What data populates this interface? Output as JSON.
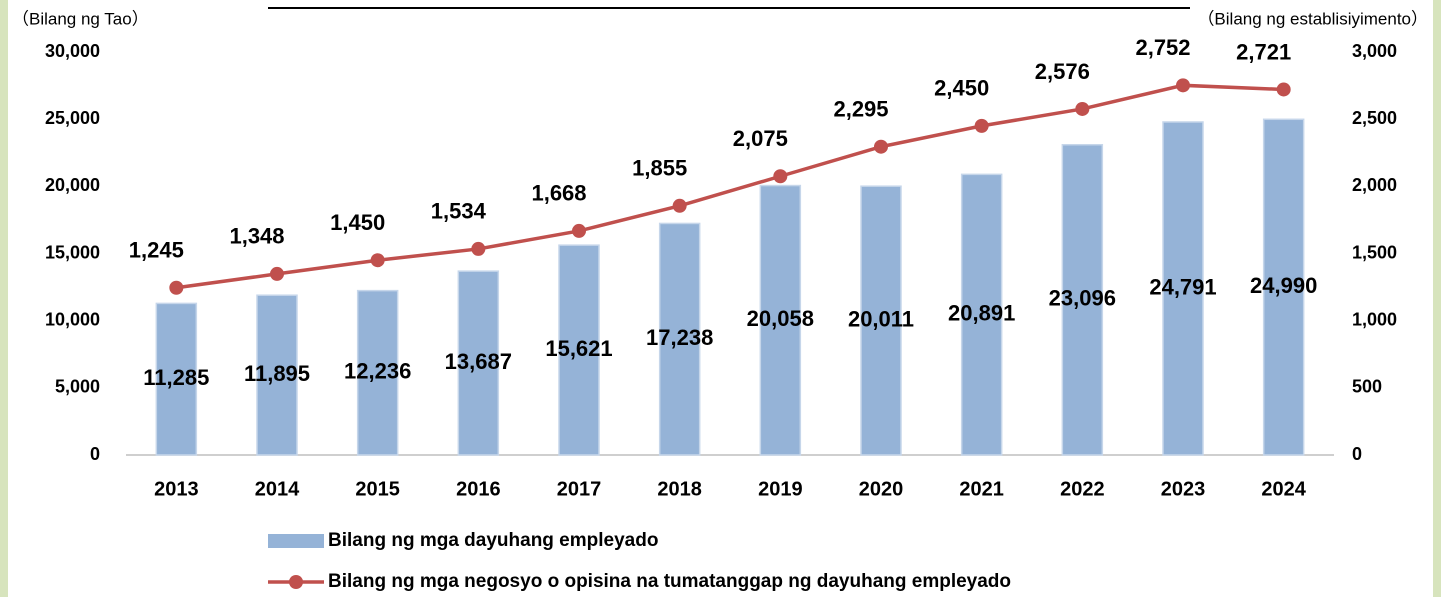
{
  "chart_data": {
    "type": "bar_line",
    "y_axis_label": "（Bilang ng Tao）",
    "y2_axis_label": "（Bilang ng establisiyimento）",
    "categories": [
      "2013",
      "2014",
      "2015",
      "2016",
      "2017",
      "2018",
      "2019",
      "2020",
      "2021",
      "2022",
      "2023",
      "2024"
    ],
    "series": [
      {
        "name": "Bilang ng mga dayuhang empleyado",
        "type": "bar",
        "color": "#95b3d7",
        "axis": "y",
        "values": [
          11285,
          11895,
          12236,
          13687,
          15621,
          17238,
          20058,
          20011,
          20891,
          23096,
          24791,
          24990
        ],
        "value_labels": [
          "11,285",
          "11,895",
          "12,236",
          "13,687",
          "15,621",
          "17,238",
          "20,058",
          "20,011",
          "20,891",
          "23,096",
          "24,791",
          "24,990"
        ]
      },
      {
        "name": "Bilang ng mga negosyo o opisina na tumatanggap ng dayuhang empleyado",
        "type": "line",
        "color": "#c0504d",
        "axis": "y2",
        "values": [
          1245,
          1348,
          1450,
          1534,
          1668,
          1855,
          2075,
          2295,
          2450,
          2576,
          2752,
          2721
        ],
        "value_labels": [
          "1,245",
          "1,348",
          "1,450",
          "1,534",
          "1,668",
          "1,855",
          "2,075",
          "2,295",
          "2,450",
          "2,576",
          "2,752",
          "2,721"
        ]
      }
    ],
    "ylim": [
      0,
      30000
    ],
    "yticks": [
      0,
      {
        "value": 5000,
        "label": "5,000"
      },
      {
        "value": 10000,
        "label": "10,000"
      },
      {
        "value": 15000,
        "label": "15,000"
      },
      {
        "value": 20000,
        "label": "20,000"
      },
      {
        "value": 25000,
        "label": "25,000"
      },
      {
        "value": 30000,
        "label": "30,000"
      }
    ],
    "y2lim": [
      0,
      3000
    ],
    "y2ticks": [
      0,
      500,
      {
        "value": 1000,
        "label": "1,000"
      },
      {
        "value": 1500,
        "label": "1,500"
      },
      {
        "value": 2000,
        "label": "2,000"
      },
      {
        "value": 2500,
        "label": "2,500"
      },
      {
        "value": 3000,
        "label": "3,000"
      }
    ],
    "grid": false,
    "legend": "bottom"
  }
}
